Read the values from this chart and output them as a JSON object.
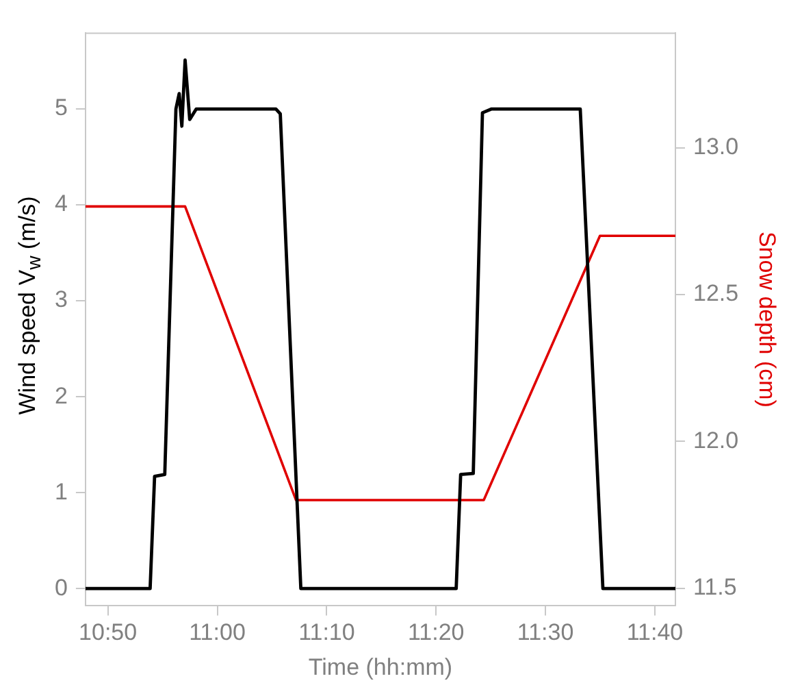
{
  "chart_data": {
    "type": "line",
    "xlabel": "Time (hh:mm)",
    "ylabel": "Wind speed V$_{w}$ (m/s)",
    "y2label": "Snow depth (cm)",
    "xlim": [
      10.7992,
      11.698
    ],
    "xticks": [
      {
        "value": 10.8333,
        "label": "10:50"
      },
      {
        "value": 11.0,
        "label": "11:00"
      },
      {
        "value": 11.1667,
        "label": "11:10"
      },
      {
        "value": 11.3333,
        "label": "11:20"
      },
      {
        "value": 11.5,
        "label": "11:30"
      },
      {
        "value": 11.6667,
        "label": "11:40"
      }
    ],
    "ylim": [
      -0.18,
      5.79
    ],
    "yticks": [
      0,
      1,
      2,
      3,
      4,
      5
    ],
    "y2lim": [
      11.44,
      13.39
    ],
    "y2ticks": [
      11.5,
      {
        "value": 12.0,
        "label": "12.0"
      },
      12.5,
      {
        "value": 13.0,
        "label": "13.0"
      }
    ],
    "grid": false,
    "legend": false,
    "marker": "none",
    "line_style": "solid",
    "series": [
      {
        "color": "#000000",
        "x": [
          10.7992,
          10.8977,
          10.9045,
          10.92,
          10.937,
          10.942,
          10.946,
          10.951,
          10.958,
          10.968,
          11.0893,
          11.096,
          11.1273,
          11.364,
          11.3708,
          11.39,
          11.404,
          11.418,
          11.553,
          11.5875,
          11.698
        ],
        "values": [
          0,
          0,
          1.17,
          1.19,
          5.0,
          5.16,
          4.82,
          5.51,
          4.89,
          5.0,
          5.0,
          4.95,
          0,
          0,
          1.19,
          1.2,
          4.96,
          5.0,
          5.0,
          0,
          0
        ]
      },
      {
        "color": "#e00000",
        "axis": "y2",
        "x": [
          10.7992,
          10.951,
          11.12,
          11.406,
          11.583,
          11.698
        ],
        "values": [
          12.8,
          12.8,
          11.8,
          11.8,
          12.7,
          12.7
        ]
      }
    ]
  }
}
